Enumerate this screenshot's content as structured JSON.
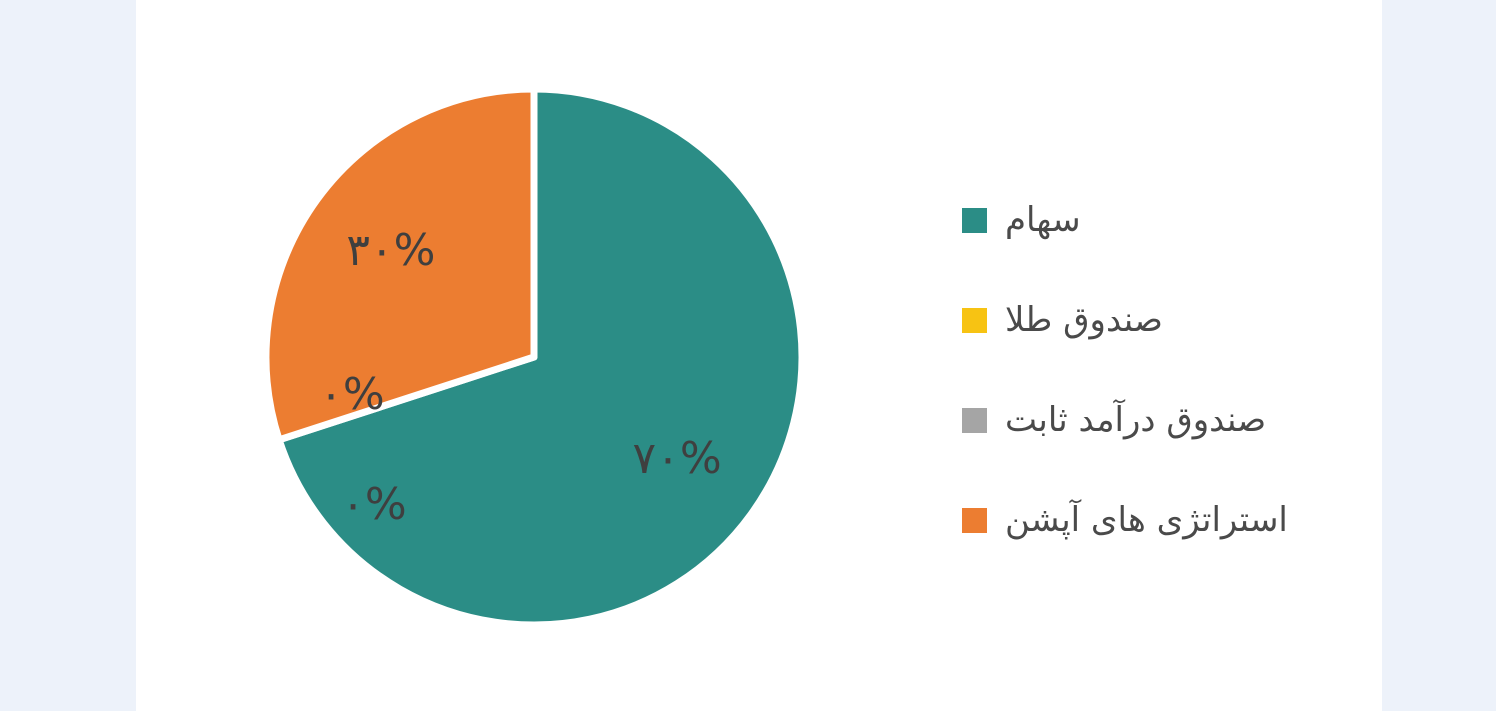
{
  "chart_data": {
    "type": "pie",
    "slices": [
      {
        "label": "سهام",
        "value": 70,
        "value_label": "۷۰%",
        "color": "#2b8d86"
      },
      {
        "label": "صندوق طلا",
        "value": 0,
        "value_label": "۰%",
        "color": "#f7c313"
      },
      {
        "label": "صندوق درآمد ثابت",
        "value": 0,
        "value_label": "۰%",
        "color": "#a5a5a5"
      },
      {
        "label": "استراتژی های آپشن",
        "value": 30,
        "value_label": "۳۰%",
        "color": "#ec7d31"
      }
    ],
    "start_angle_deg": 0,
    "direction": "clockwise",
    "legend_position": "right"
  }
}
